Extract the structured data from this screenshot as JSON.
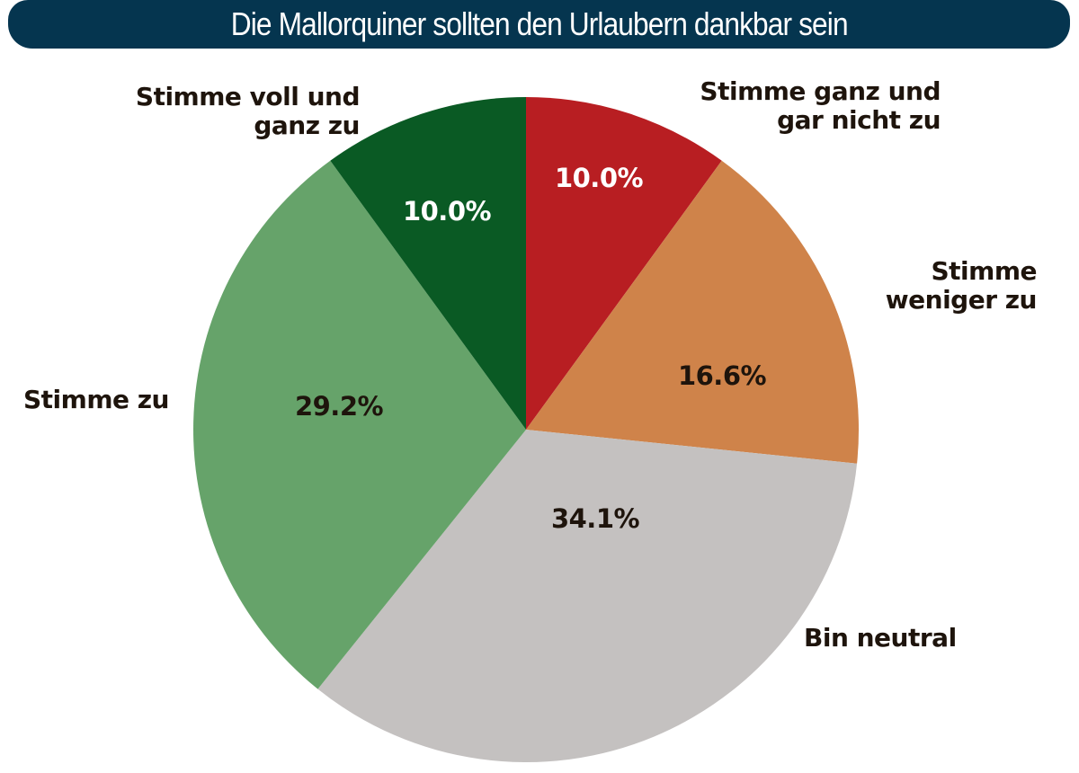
{
  "title": "Die Mallorquiner sollten den Urlaubern dankbar sein",
  "colors": {
    "title_bar": "#05354f",
    "title_text": "#ffffff",
    "label_text": "#1e140c"
  },
  "chart_data": {
    "type": "pie",
    "title": "Die Mallorquiner sollten den Urlaubern dankbar sein",
    "start_angle": "12 o'clock",
    "direction": "clockwise",
    "legend_position": "labels around pie",
    "slices": [
      {
        "label": "Stimme ganz und gar nicht zu",
        "value": 10.0,
        "value_label": "10.0%",
        "color": "#b81e22",
        "value_color": "#ffffff"
      },
      {
        "label": "Stimme weniger zu",
        "value": 16.6,
        "value_label": "16.6%",
        "color": "#cf834a",
        "value_color": "#1e140c"
      },
      {
        "label": "Bin neutral",
        "value": 34.1,
        "value_label": "34.1%",
        "color": "#c4c1c0",
        "value_color": "#1e140c"
      },
      {
        "label": "Stimme zu",
        "value": 29.2,
        "value_label": "29.2%",
        "color": "#66a36a",
        "value_color": "#1e140c"
      },
      {
        "label": "Stimme voll und ganz zu",
        "value": 10.0,
        "value_label": "10.0%",
        "color": "#0a5a24",
        "value_color": "#ffffff"
      }
    ]
  },
  "labels": {
    "strongly_disagree": "Stimme ganz und\ngar nicht zu",
    "disagree": "Stimme\nweniger zu",
    "neutral": "Bin neutral",
    "agree": "Stimme zu",
    "strongly_agree": "Stimme voll und\nganz zu"
  }
}
